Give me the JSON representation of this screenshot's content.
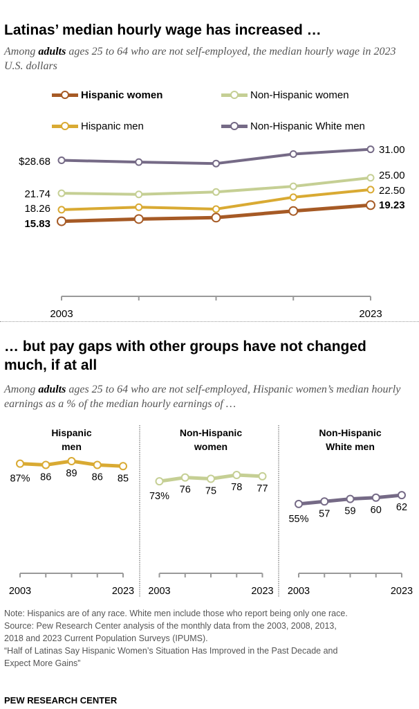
{
  "chart_data": [
    {
      "type": "line",
      "title": "Latinas’ median hourly wage has increased …",
      "subtitle_parts": [
        "Among ",
        "adults",
        " ages 25 to 64 who are not self-employed, the median hourly wage in 2023 U.S. dollars"
      ],
      "x": [
        2003,
        2008,
        2013,
        2018,
        2023
      ],
      "x_tick_labels": [
        "2003",
        "",
        "",
        "",
        "2023"
      ],
      "ylim": [
        0,
        33
      ],
      "grid": false,
      "legend": "top",
      "series": [
        {
          "name": "Hispanic women",
          "color": "#a65a25",
          "values": [
            15.83,
            16.3,
            16.6,
            18.0,
            19.23
          ],
          "labels": [
            "15.83",
            "19.23"
          ],
          "bold": true
        },
        {
          "name": "Non-Hispanic women",
          "color": "#c5cf94",
          "values": [
            21.74,
            21.5,
            22.0,
            23.2,
            25.0
          ],
          "labels": [
            "21.74",
            "25.00"
          ]
        },
        {
          "name": "Hispanic men",
          "color": "#d9aa33",
          "values": [
            18.26,
            18.8,
            18.4,
            20.9,
            22.5
          ],
          "labels": [
            "18.26",
            "22.50"
          ]
        },
        {
          "name": "Non-Hispanic White men",
          "color": "#756a86",
          "values": [
            28.68,
            28.3,
            28.0,
            30.0,
            31.0
          ],
          "labels": [
            "$28.68",
            "31.00"
          ]
        }
      ]
    },
    {
      "type": "line",
      "title": "… but pay gaps with other groups have not changed much, if at all",
      "subtitle_parts": [
        "Among ",
        "adults",
        " ages 25 to 64 who are not self-employed, Hispanic women’s median hourly earnings as a % of the median hourly earnings of …"
      ],
      "x": [
        2003,
        2008,
        2013,
        2018,
        2023
      ],
      "x_tick_labels": [
        "2003",
        "",
        "",
        "",
        "2023"
      ],
      "ylim": [
        0,
        100
      ],
      "panels": [
        {
          "name": "Hispanic men",
          "title_lines": [
            "Hispanic",
            "men"
          ],
          "color": "#d9aa33",
          "values": [
            87,
            86,
            89,
            86,
            85
          ],
          "labels": [
            "87%",
            "86",
            "89",
            "86",
            "85"
          ]
        },
        {
          "name": "Non-Hispanic women",
          "title_lines": [
            "Non-Hispanic",
            "women"
          ],
          "color": "#c5cf94",
          "values": [
            73,
            76,
            75,
            78,
            77
          ],
          "labels": [
            "73%",
            "76",
            "75",
            "78",
            "77"
          ]
        },
        {
          "name": "Non-Hispanic White men",
          "title_lines": [
            "Non-Hispanic",
            "White men"
          ],
          "color": "#756a86",
          "values": [
            55,
            57,
            59,
            60,
            62
          ],
          "labels": [
            "55%",
            "57",
            "59",
            "60",
            "62"
          ]
        }
      ]
    }
  ],
  "notes": {
    "lines": [
      "Note: Hispanics are of any race. White men include those who report being only one race.",
      "Source: Pew Research Center analysis of the monthly data from the 2003, 2008, 2013,",
      "2018 and 2023 Current Population Surveys (IPUMS).",
      "“Half of Latinas Say Hispanic Women’s Situation Has Improved in the Past Decade and",
      "Expect More Gains”"
    ]
  },
  "brand": "PEW RESEARCH CENTER"
}
